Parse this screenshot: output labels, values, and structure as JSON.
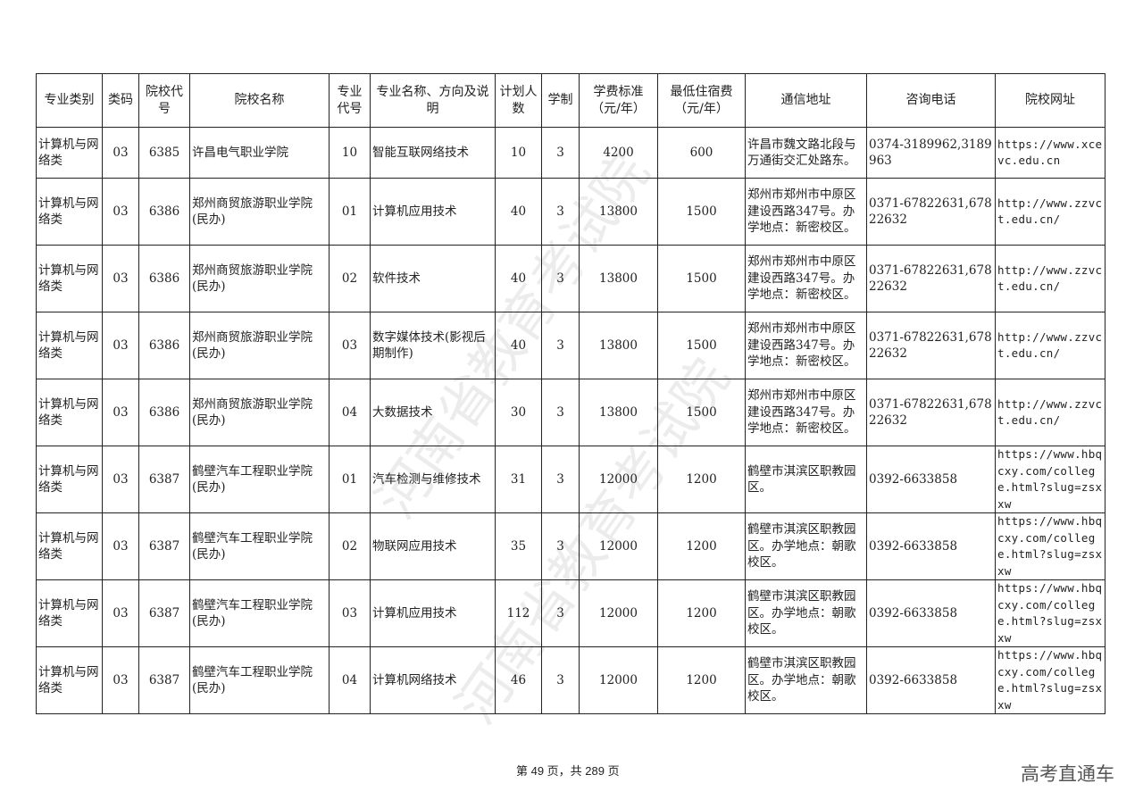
{
  "table": {
    "headers": [
      "专业类别",
      "类码",
      "院校代号",
      "院校名称",
      "专业代号",
      "专业名称、方向及说明",
      "计划人数",
      "学制",
      "学费标准（元/年）",
      "最低住宿费（元/年）",
      "通信地址",
      "咨询电话",
      "院校网址"
    ],
    "rows": [
      [
        "计算机与网络类",
        "03",
        "6385",
        "许昌电气职业学院",
        "10",
        "智能互联网络技术",
        "10",
        "3",
        "4200",
        "600",
        "许昌市魏文路北段与万通街交汇处路东。",
        "0374-3189962,3189963",
        "https://www.xcevc.edu.cn"
      ],
      [
        "计算机与网络类",
        "03",
        "6386",
        "郑州商贸旅游职业学院(民办)",
        "01",
        "计算机应用技术",
        "40",
        "3",
        "13800",
        "1500",
        "郑州市郑州市中原区建设西路347号。办学地点：新密校区。",
        "0371-67822631,67822632",
        "http://www.zzvct.edu.cn/"
      ],
      [
        "计算机与网络类",
        "03",
        "6386",
        "郑州商贸旅游职业学院(民办)",
        "02",
        "软件技术",
        "40",
        "3",
        "13800",
        "1500",
        "郑州市郑州市中原区建设西路347号。办学地点：新密校区。",
        "0371-67822631,67822632",
        "http://www.zzvct.edu.cn/"
      ],
      [
        "计算机与网络类",
        "03",
        "6386",
        "郑州商贸旅游职业学院(民办)",
        "03",
        "数字媒体技术(影视后期制作)",
        "40",
        "3",
        "13800",
        "1500",
        "郑州市郑州市中原区建设西路347号。办学地点：新密校区。",
        "0371-67822631,67822632",
        "http://www.zzvct.edu.cn/"
      ],
      [
        "计算机与网络类",
        "03",
        "6386",
        "郑州商贸旅游职业学院(民办)",
        "04",
        "大数据技术",
        "30",
        "3",
        "13800",
        "1500",
        "郑州市郑州市中原区建设西路347号。办学地点：新密校区。",
        "0371-67822631,67822632",
        "http://www.zzvct.edu.cn/"
      ],
      [
        "计算机与网络类",
        "03",
        "6387",
        "鹤壁汽车工程职业学院(民办)",
        "01",
        "汽车检测与维修技术",
        "31",
        "3",
        "12000",
        "1200",
        "鹤壁市淇滨区职教园区。",
        "0392-6633858",
        "https://www.hbqcxy.com/college.html?slug=zsxxw"
      ],
      [
        "计算机与网络类",
        "03",
        "6387",
        "鹤壁汽车工程职业学院(民办)",
        "02",
        "物联网应用技术",
        "35",
        "3",
        "12000",
        "1200",
        "鹤壁市淇滨区职教园区。办学地点：朝歌校区。",
        "0392-6633858",
        "https://www.hbqcxy.com/college.html?slug=zsxxw"
      ],
      [
        "计算机与网络类",
        "03",
        "6387",
        "鹤壁汽车工程职业学院(民办)",
        "03",
        "计算机应用技术",
        "112",
        "3",
        "12000",
        "1200",
        "鹤壁市淇滨区职教园区。办学地点：朝歌校区。",
        "0392-6633858",
        "https://www.hbqcxy.com/college.html?slug=zsxxw"
      ],
      [
        "计算机与网络类",
        "03",
        "6387",
        "鹤壁汽车工程职业学院(民办)",
        "04",
        "计算机网络技术",
        "46",
        "3",
        "12000",
        "1200",
        "鹤壁市淇滨区职教园区。办学地点：朝歌校区。",
        "0392-6633858",
        "https://www.hbqcxy.com/college.html?slug=zsxxw"
      ]
    ]
  },
  "watermark": "河南省教育考试院",
  "footer": {
    "page": "第 49 页，共 289 页"
  },
  "brand": "高考直通车"
}
